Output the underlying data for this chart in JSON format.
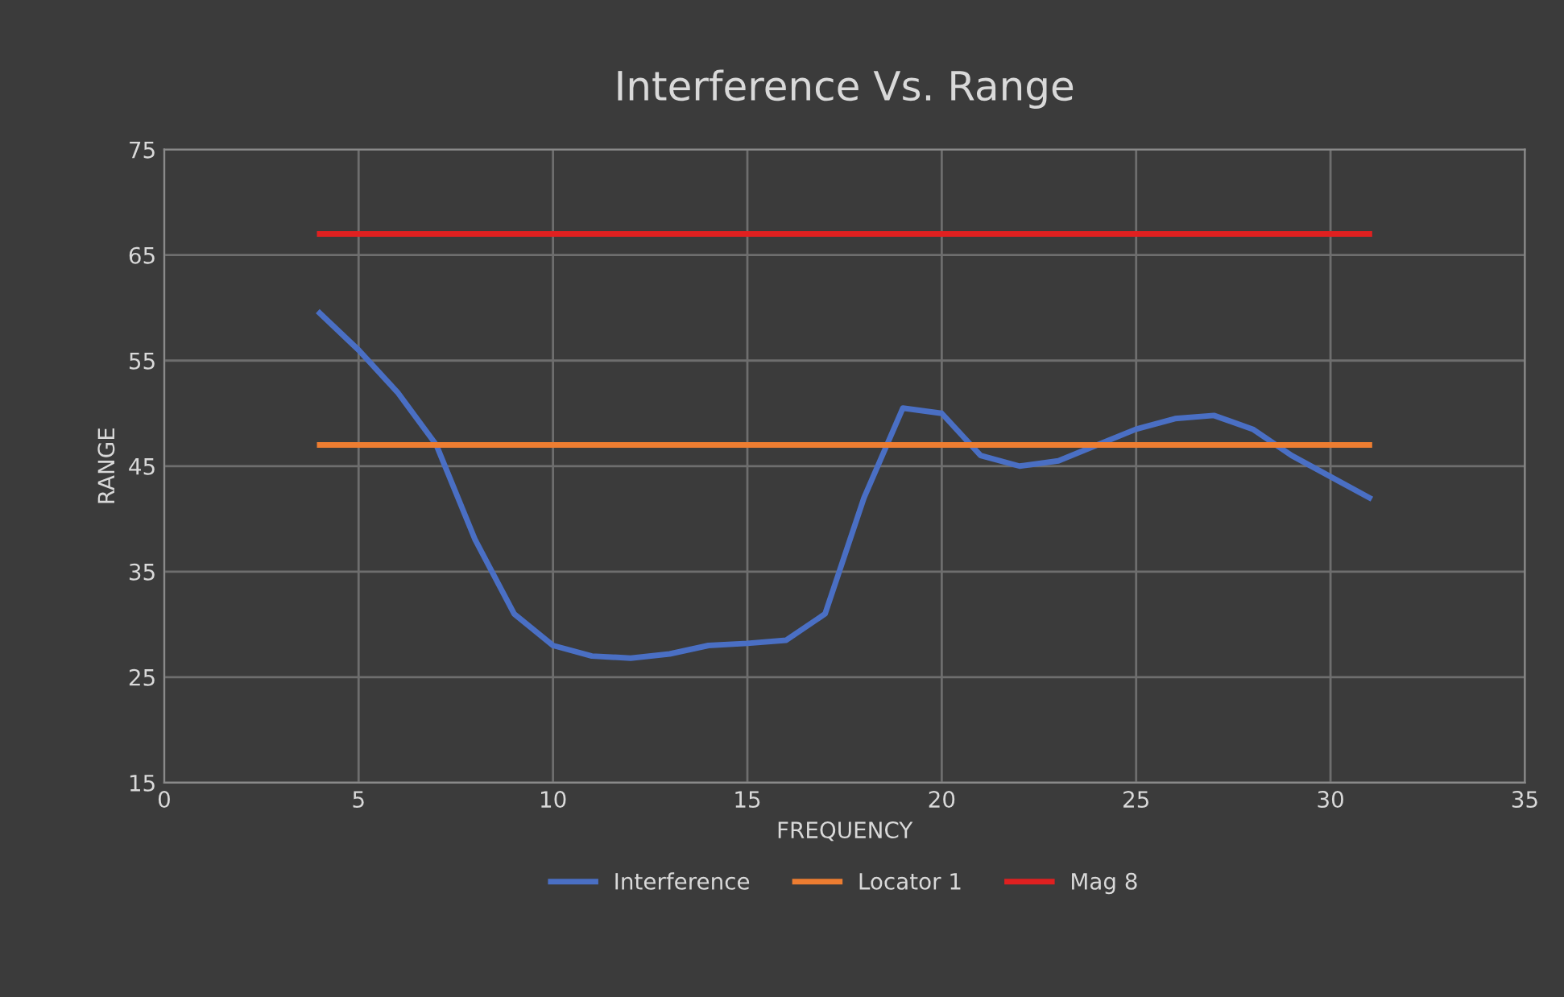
{
  "chart_data": {
    "type": "line",
    "title": "Interference Vs. Range",
    "xlabel": "FREQUENCY",
    "ylabel": "RANGE",
    "xlim": [
      0,
      35
    ],
    "xticks": [
      0,
      5,
      10,
      15,
      20,
      25,
      30,
      35
    ],
    "ylim": [
      15,
      75
    ],
    "yticks": [
      15,
      25,
      35,
      45,
      55,
      65,
      75
    ],
    "grid": true,
    "legend": "bottom",
    "series": [
      {
        "name": "Interference",
        "color": "#4a6fc4",
        "x": [
          4,
          5,
          6,
          7,
          8,
          9,
          10,
          11,
          12,
          13,
          14,
          15,
          16,
          17,
          18,
          19,
          20,
          21,
          22,
          23,
          24,
          25,
          26,
          27,
          28,
          29,
          30,
          31
        ],
        "values": [
          59.5,
          56,
          52,
          47,
          38,
          31,
          28,
          27,
          26.8,
          27.2,
          28,
          28.2,
          28.5,
          31,
          42,
          50.5,
          50,
          46,
          45,
          45.5,
          47,
          48.5,
          49.5,
          49.8,
          48.5,
          46,
          44,
          42
        ]
      },
      {
        "name": "Locator 1",
        "color": "#ed7d31",
        "x": [
          4,
          31
        ],
        "values": [
          47,
          47
        ]
      },
      {
        "name": "Mag 8",
        "color": "#e02020",
        "x": [
          4,
          31
        ],
        "values": [
          67,
          67
        ]
      }
    ]
  }
}
